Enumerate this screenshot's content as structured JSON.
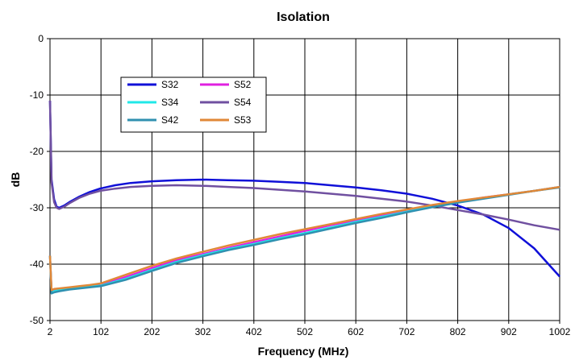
{
  "chart_data": {
    "type": "line",
    "title": "Isolation",
    "xlabel": "Frequency (MHz)",
    "ylabel": "dB",
    "xlim": [
      2,
      1002
    ],
    "ylim": [
      -50,
      0
    ],
    "xticks": [
      2,
      102,
      202,
      302,
      402,
      502,
      602,
      702,
      802,
      902,
      1002
    ],
    "yticks": [
      0,
      -10,
      -20,
      -30,
      -40,
      -50
    ],
    "grid": true,
    "legend_position": "top-left",
    "series": [
      {
        "name": "S32",
        "color": "#1010d8",
        "x": [
          2,
          5,
          10,
          15,
          20,
          30,
          40,
          60,
          80,
          100,
          130,
          160,
          202,
          250,
          302,
          350,
          402,
          452,
          502,
          552,
          602,
          652,
          702,
          752,
          802,
          852,
          902,
          952,
          1002
        ],
        "y": [
          -11,
          -25,
          -28.5,
          -29.8,
          -30,
          -29.6,
          -29,
          -28,
          -27.2,
          -26.6,
          -26,
          -25.6,
          -25.3,
          -25.1,
          -25,
          -25.1,
          -25.2,
          -25.4,
          -25.6,
          -26,
          -26.4,
          -26.9,
          -27.5,
          -28.4,
          -29.6,
          -31.2,
          -33.6,
          -37.2,
          -42.2
        ]
      },
      {
        "name": "S52",
        "color": "#e020e0",
        "x": [
          2,
          5,
          10,
          20,
          40,
          60,
          80,
          102,
          150,
          202,
          250,
          302,
          352,
          402,
          452,
          502,
          552,
          602,
          652,
          702,
          752,
          802,
          852,
          902,
          952,
          1002
        ],
        "y": [
          -38.5,
          -44.8,
          -44.6,
          -44.5,
          -44.3,
          -44.1,
          -43.9,
          -43.7,
          -42.3,
          -40.7,
          -39.3,
          -38.2,
          -37.1,
          -36.1,
          -35.1,
          -34.1,
          -33.1,
          -32.2,
          -31.3,
          -30.4,
          -29.6,
          -28.9,
          -28.2,
          -27.6,
          -27,
          -26.3
        ]
      },
      {
        "name": "S34",
        "color": "#20e8e8",
        "x": [
          2,
          5,
          10,
          20,
          40,
          60,
          80,
          102,
          150,
          202,
          250,
          302,
          352,
          402,
          452,
          502,
          552,
          602,
          652,
          702,
          752,
          802,
          852,
          902,
          952,
          1002
        ],
        "y": [
          -38.5,
          -45,
          -44.8,
          -44.6,
          -44.4,
          -44.2,
          -44,
          -43.8,
          -42.6,
          -41,
          -39.6,
          -38.4,
          -37.3,
          -36.4,
          -35.4,
          -34.5,
          -33.5,
          -32.5,
          -31.6,
          -30.7,
          -29.8,
          -29,
          -28.3,
          -27.6,
          -27,
          -26.3
        ]
      },
      {
        "name": "S54",
        "color": "#7050a0",
        "x": [
          2,
          5,
          10,
          15,
          20,
          30,
          40,
          60,
          80,
          100,
          130,
          160,
          202,
          250,
          302,
          352,
          402,
          452,
          502,
          552,
          602,
          652,
          702,
          752,
          802,
          852,
          902,
          952,
          1002
        ],
        "y": [
          -11,
          -25.5,
          -29,
          -30,
          -30.2,
          -29.8,
          -29.2,
          -28.2,
          -27.5,
          -27,
          -26.6,
          -26.3,
          -26.1,
          -26,
          -26.1,
          -26.3,
          -26.5,
          -26.8,
          -27.1,
          -27.5,
          -27.9,
          -28.4,
          -28.9,
          -29.6,
          -30.4,
          -31.2,
          -32.1,
          -33.1,
          -33.9
        ]
      },
      {
        "name": "S42",
        "color": "#3090b0",
        "x": [
          2,
          5,
          10,
          20,
          40,
          60,
          80,
          102,
          150,
          202,
          250,
          302,
          352,
          402,
          452,
          502,
          552,
          602,
          652,
          702,
          752,
          802,
          852,
          902,
          952,
          1002
        ],
        "y": [
          -38.5,
          -45.2,
          -45,
          -44.8,
          -44.5,
          -44.3,
          -44.1,
          -43.9,
          -42.8,
          -41.2,
          -39.8,
          -38.6,
          -37.5,
          -36.6,
          -35.6,
          -34.7,
          -33.7,
          -32.7,
          -31.8,
          -30.8,
          -29.9,
          -29.1,
          -28.4,
          -27.7,
          -27,
          -26.4
        ]
      },
      {
        "name": "S53",
        "color": "#e08838",
        "x": [
          2,
          5,
          10,
          20,
          40,
          60,
          80,
          102,
          150,
          202,
          250,
          302,
          352,
          402,
          452,
          502,
          552,
          602,
          652,
          702,
          752,
          802,
          852,
          902,
          952,
          1002
        ],
        "y": [
          -38.5,
          -44.6,
          -44.4,
          -44.3,
          -44.1,
          -43.9,
          -43.7,
          -43.4,
          -41.9,
          -40.3,
          -39,
          -37.8,
          -36.7,
          -35.7,
          -34.7,
          -33.8,
          -32.9,
          -32,
          -31.1,
          -30.3,
          -29.5,
          -28.8,
          -28.2,
          -27.6,
          -27,
          -26.3
        ]
      }
    ],
    "legend_layout": [
      [
        "S32",
        "S52"
      ],
      [
        "S34",
        "S54"
      ],
      [
        "S42",
        "S53"
      ]
    ]
  }
}
